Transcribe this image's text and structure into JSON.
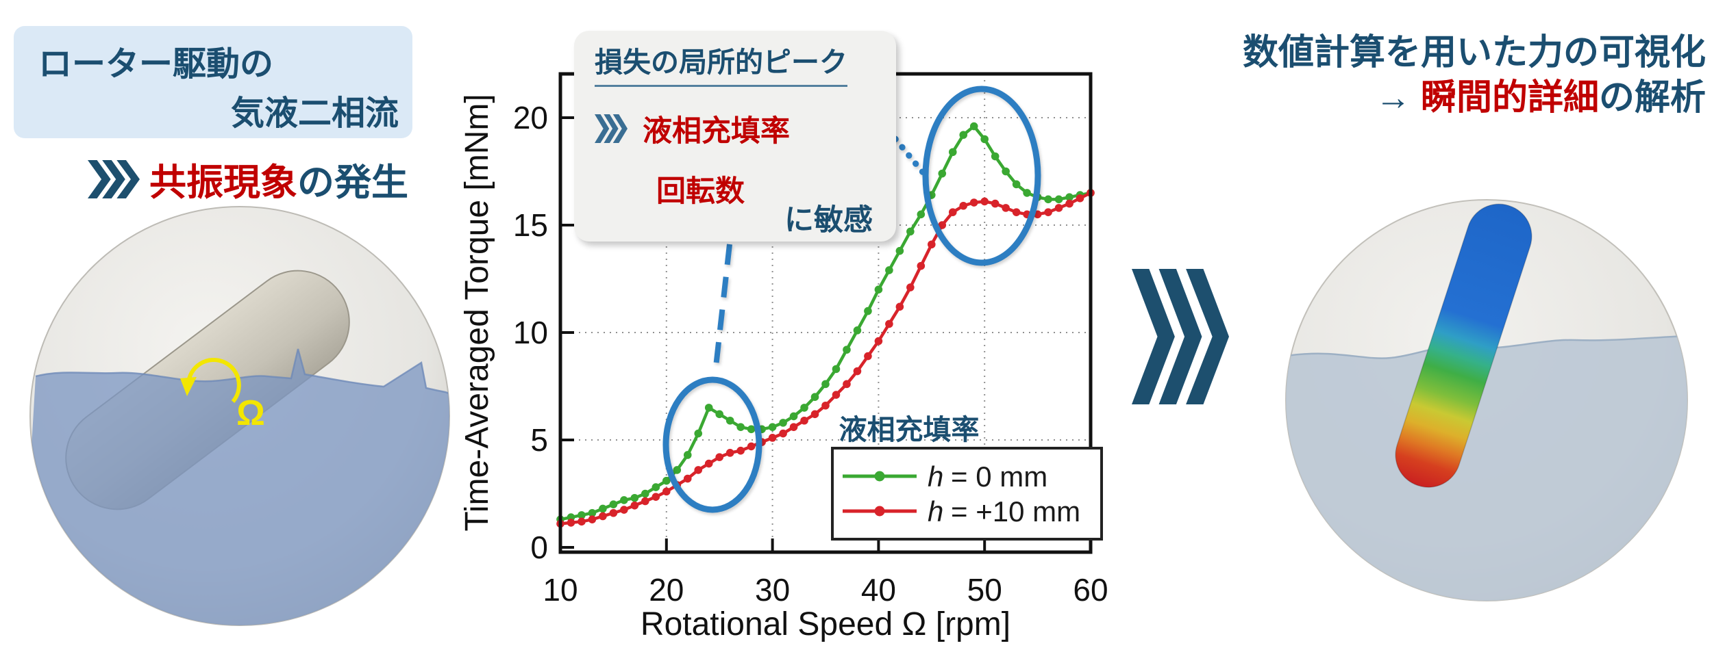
{
  "colors": {
    "navy": "#1b4e70",
    "red_text": "#c00000",
    "highlight_blue": "#2d7ec2",
    "chevron_navy": "#1d4f6e",
    "chevron_steel": "#3a6e93",
    "left_box_bg": "#dbe9f6",
    "annotation_bg": "#f1f1ef",
    "liquid_blue": "#7b95c1",
    "liquid_pale": "#b8c5d4",
    "omega_yellow": "#f3e600"
  },
  "left_panel": {
    "title_line1": "ローター駆動の",
    "title_line2": "気液二相流",
    "subtitle_red": "共振現象",
    "subtitle_rest": "の発生",
    "omega_label": "Ω"
  },
  "annotation": {
    "title": "損失の局所的ピーク",
    "item1": "液相充填率",
    "item2": "回転数",
    "suffix": "に敏感"
  },
  "right_panel": {
    "line1": "数値計算を用いた力の可視化",
    "arrow": "→ ",
    "line2_red": "瞬間的詳細",
    "line2_rest": "の解析"
  },
  "chart_data": {
    "type": "line",
    "title": "",
    "xlabel": "Rotational Speed Ω [rpm]",
    "ylabel": "Time-Averaged Torque [mNm]",
    "xlim": [
      10,
      60
    ],
    "ylim": [
      0,
      22
    ],
    "xticks": [
      10,
      20,
      30,
      40,
      50,
      60
    ],
    "yticks": [
      0,
      5,
      10,
      15,
      20
    ],
    "grid": "dotted",
    "legend_position": "lower right",
    "legend_title": "液相充填率",
    "legend": [
      {
        "var": "h",
        "rest": "= 0 mm"
      },
      {
        "var": "h",
        "rest": "= +10 mm"
      }
    ],
    "x": [
      10,
      11,
      12,
      13,
      14,
      15,
      16,
      17,
      18,
      19,
      20,
      21,
      22,
      23,
      24,
      25,
      26,
      27,
      28,
      29,
      30,
      31,
      32,
      33,
      34,
      35,
      36,
      37,
      38,
      39,
      40,
      41,
      42,
      43,
      44,
      45,
      46,
      47,
      48,
      49,
      50,
      51,
      52,
      53,
      54,
      55,
      56,
      57,
      58,
      59,
      60
    ],
    "series": [
      {
        "name": "h = 0 mm",
        "color": "#3aa832",
        "values": [
          1.3,
          1.4,
          1.5,
          1.6,
          1.8,
          2.0,
          2.2,
          2.3,
          2.5,
          2.8,
          3.1,
          3.6,
          4.3,
          5.3,
          6.5,
          6.2,
          5.9,
          5.6,
          5.5,
          5.5,
          5.6,
          5.8,
          6.1,
          6.5,
          7.0,
          7.6,
          8.3,
          9.2,
          10.1,
          11.0,
          12.0,
          12.9,
          13.8,
          14.7,
          15.5,
          16.4,
          17.4,
          18.4,
          19.2,
          19.6,
          19.0,
          18.2,
          17.5,
          16.9,
          16.5,
          16.3,
          16.2,
          16.2,
          16.3,
          16.4,
          16.5
        ]
      },
      {
        "name": "h = +10 mm",
        "color": "#d8232a",
        "values": [
          1.1,
          1.15,
          1.2,
          1.3,
          1.45,
          1.6,
          1.75,
          1.95,
          2.15,
          2.35,
          2.6,
          2.9,
          3.2,
          3.6,
          3.9,
          4.2,
          4.4,
          4.5,
          4.7,
          4.9,
          5.1,
          5.3,
          5.6,
          5.9,
          6.2,
          6.6,
          7.1,
          7.6,
          8.2,
          8.9,
          9.6,
          10.4,
          11.2,
          12.1,
          13.1,
          14.1,
          15.0,
          15.6,
          15.9,
          16.05,
          16.1,
          16.0,
          15.8,
          15.6,
          15.5,
          15.5,
          15.6,
          15.8,
          16.0,
          16.25,
          16.5
        ]
      }
    ],
    "annotations": [
      "local peak near 24 rpm",
      "local peak near 49 rpm"
    ]
  }
}
